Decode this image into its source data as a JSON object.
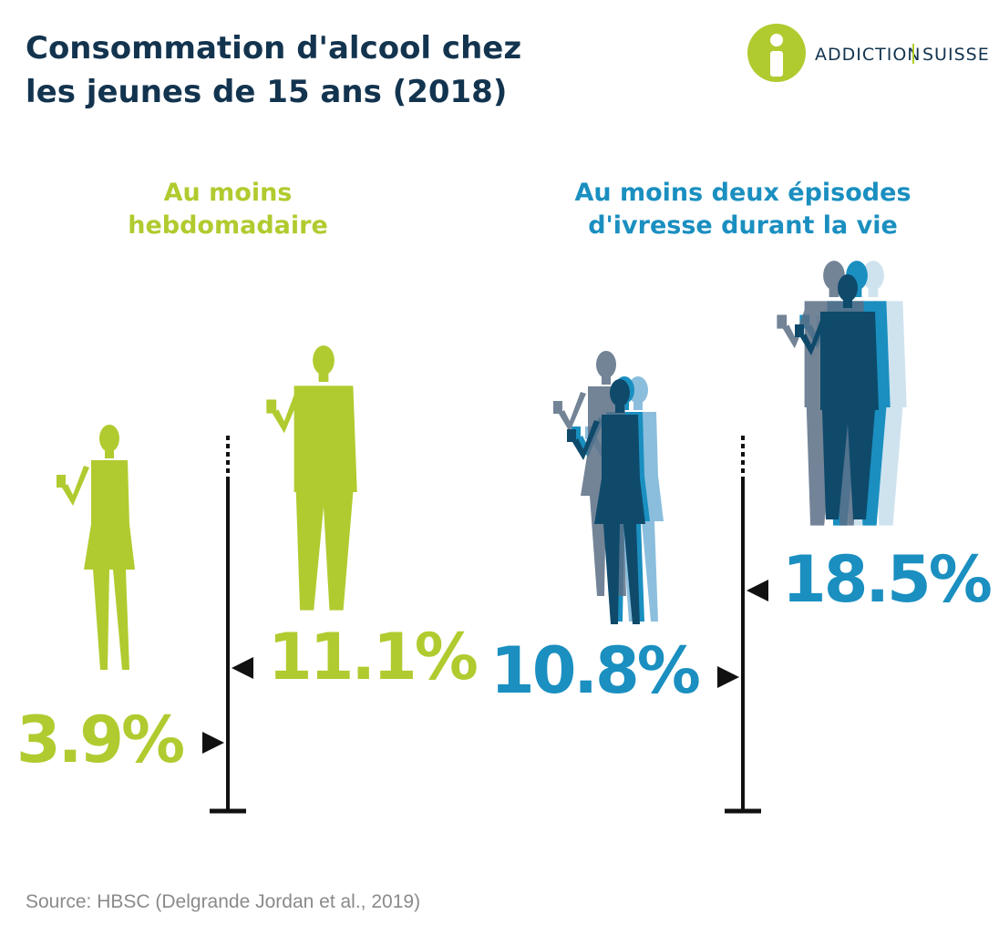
{
  "header": {
    "title_lines": [
      "Consommation d'alcool chez",
      "les jeunes de 15 ans (2018)"
    ],
    "logo": [
      "ADDICTION",
      "SUISSE"
    ]
  },
  "panels": [
    {
      "heading_lines": [
        "Au moins",
        "hebdomadaire"
      ],
      "girls": "3.9%",
      "boys": "11.1%"
    },
    {
      "heading_lines": [
        "Au moins deux épisodes",
        "d'ivresse durant la vie"
      ],
      "girls": "10.8%",
      "boys": "18.5%"
    }
  ],
  "source": "Source: HBSC (Delgrande Jordan et al., 2019)"
}
